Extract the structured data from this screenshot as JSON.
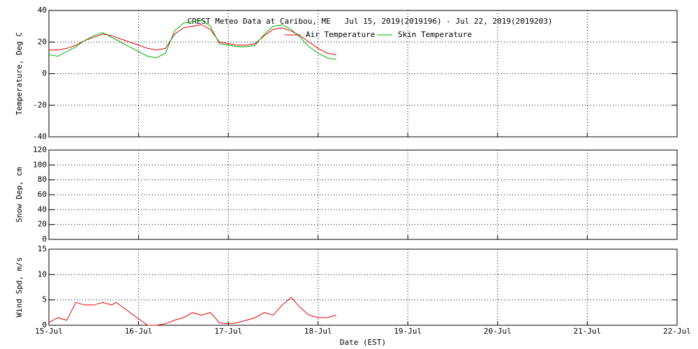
{
  "chart_data": [
    {
      "type": "line",
      "title": "CREST Meteo Data at Caribou, ME   Jul 15, 2019(2019196) - Jul 22, 2019(2019203)",
      "ylabel": "Temperature, Deg C",
      "xlim": [
        0,
        7
      ],
      "xticks": [
        0,
        1,
        2,
        3,
        4,
        5,
        6,
        7
      ],
      "ylim": [
        -40,
        40
      ],
      "yticks": [
        -40,
        -20,
        0,
        20,
        40
      ],
      "grid": true,
      "legend": "top",
      "x": [
        0,
        0.1,
        0.2,
        0.3,
        0.4,
        0.5,
        0.6,
        0.7,
        0.8,
        0.9,
        1.0,
        1.1,
        1.2,
        1.3,
        1.4,
        1.5,
        1.6,
        1.7,
        1.8,
        1.9,
        2.0,
        2.1,
        2.2,
        2.3,
        2.4,
        2.5,
        2.6,
        2.7,
        2.8,
        2.9,
        3.0,
        3.1,
        3.2
      ],
      "series": [
        {
          "name": "Air Temperature",
          "color": "#e00000",
          "values": [
            15,
            15,
            16,
            18,
            21,
            23,
            25,
            24,
            22,
            20,
            18,
            16,
            15,
            16,
            25,
            29,
            30,
            31,
            28,
            20,
            19,
            18,
            18,
            19,
            24,
            28,
            29,
            27,
            24,
            20,
            16,
            13,
            12
          ]
        },
        {
          "name": "Skin Temperature",
          "color": "#00b000",
          "values": [
            12,
            11,
            14,
            17,
            21,
            24,
            26,
            23,
            20,
            17,
            14,
            11,
            10,
            13,
            27,
            32,
            33,
            34,
            30,
            19,
            18,
            17,
            17,
            18,
            25,
            30,
            31,
            28,
            23,
            17,
            13,
            10,
            9
          ]
        }
      ]
    },
    {
      "type": "line",
      "ylabel": "Snow Dep, cm",
      "xlim": [
        0,
        7
      ],
      "xticks": [
        0,
        1,
        2,
        3,
        4,
        5,
        6,
        7
      ],
      "ylim": [
        0,
        120
      ],
      "yticks": [
        0,
        20,
        40,
        60,
        80,
        100,
        120
      ],
      "grid": true,
      "series": []
    },
    {
      "type": "line",
      "ylabel": "Wind Spd, m/s",
      "xlabel": "Date (EST)",
      "xlim": [
        0,
        7
      ],
      "xticks": [
        {
          "value": 0,
          "label": "15-Jul"
        },
        {
          "value": 1,
          "label": "16-Jul"
        },
        {
          "value": 2,
          "label": "17-Jul"
        },
        {
          "value": 3,
          "label": "18-Jul"
        },
        {
          "value": 4,
          "label": "19-Jul"
        },
        {
          "value": 5,
          "label": "20-Jul"
        },
        {
          "value": 6,
          "label": "21-Jul"
        },
        {
          "value": 7,
          "label": "22-Jul"
        }
      ],
      "ylim": [
        0,
        15
      ],
      "yticks": [
        0,
        5,
        10,
        15
      ],
      "grid": true,
      "x": [
        0,
        0.1,
        0.2,
        0.3,
        0.4,
        0.5,
        0.6,
        0.7,
        0.75,
        1.1,
        1.2,
        1.3,
        1.4,
        1.5,
        1.6,
        1.7,
        1.8,
        1.9,
        2.0,
        2.1,
        2.2,
        2.3,
        2.4,
        2.5,
        2.6,
        2.7,
        2.8,
        2.9,
        3.0,
        3.1,
        3.2
      ],
      "series": [
        {
          "name": "Wind Speed",
          "color": "#e00000",
          "values": [
            0.5,
            1.5,
            1,
            4.5,
            4,
            4,
            4.5,
            4,
            4.5,
            0,
            0,
            0.3,
            1,
            1.5,
            2.5,
            2,
            2.5,
            0.5,
            0.3,
            0.5,
            1,
            1.5,
            2.5,
            2,
            4,
            5.5,
            3.5,
            2,
            1.5,
            1.5,
            2
          ]
        }
      ]
    }
  ]
}
